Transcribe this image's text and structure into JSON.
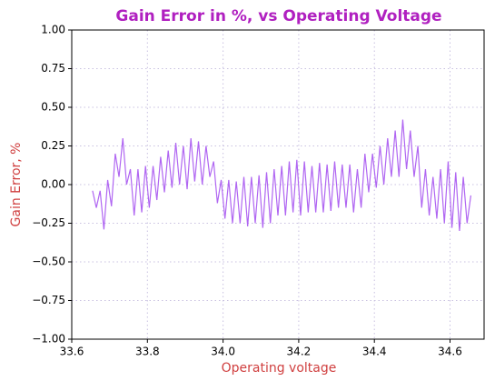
{
  "chart_data": {
    "type": "line",
    "title": "Gain Error in %, vs Operating Voltage",
    "xlabel": "Operating voltage",
    "ylabel": "Gain Error, %",
    "x": [
      33.655,
      33.665,
      33.675,
      33.685,
      33.695,
      33.705,
      33.715,
      33.725,
      33.735,
      33.745,
      33.755,
      33.765,
      33.775,
      33.785,
      33.795,
      33.805,
      33.815,
      33.825,
      33.835,
      33.845,
      33.855,
      33.865,
      33.875,
      33.885,
      33.895,
      33.905,
      33.915,
      33.925,
      33.935,
      33.945,
      33.955,
      33.965,
      33.975,
      33.985,
      33.995,
      34.005,
      34.015,
      34.025,
      34.035,
      34.045,
      34.055,
      34.065,
      34.075,
      34.085,
      34.095,
      34.105,
      34.115,
      34.125,
      34.135,
      34.145,
      34.155,
      34.165,
      34.175,
      34.185,
      34.195,
      34.205,
      34.215,
      34.225,
      34.235,
      34.245,
      34.255,
      34.265,
      34.275,
      34.285,
      34.295,
      34.305,
      34.315,
      34.325,
      34.335,
      34.345,
      34.355,
      34.365,
      34.375,
      34.385,
      34.395,
      34.405,
      34.415,
      34.425,
      34.435,
      34.445,
      34.455,
      34.465,
      34.475,
      34.485,
      34.495,
      34.505,
      34.515,
      34.525,
      34.535,
      34.545,
      34.555,
      34.565,
      34.575,
      34.585,
      34.595,
      34.605,
      34.615,
      34.625,
      34.635,
      34.645,
      34.655
    ],
    "series": [
      {
        "name": "Gain Error",
        "color": "#b066f2",
        "values": [
          -0.04,
          -0.15,
          -0.04,
          -0.29,
          0.03,
          -0.14,
          0.2,
          0.05,
          0.3,
          0.0,
          0.1,
          -0.2,
          0.1,
          -0.18,
          0.12,
          -0.15,
          0.12,
          -0.1,
          0.18,
          -0.05,
          0.22,
          -0.02,
          0.27,
          0.0,
          0.25,
          -0.03,
          0.3,
          0.02,
          0.28,
          0.0,
          0.25,
          0.05,
          0.15,
          -0.12,
          0.03,
          -0.22,
          0.03,
          -0.25,
          0.02,
          -0.25,
          0.05,
          -0.27,
          0.05,
          -0.25,
          0.06,
          -0.28,
          0.08,
          -0.25,
          0.1,
          -0.2,
          0.12,
          -0.2,
          0.15,
          -0.18,
          0.16,
          -0.2,
          0.15,
          -0.18,
          0.12,
          -0.18,
          0.14,
          -0.18,
          0.13,
          -0.17,
          0.15,
          -0.15,
          0.13,
          -0.15,
          0.13,
          -0.18,
          0.1,
          -0.15,
          0.2,
          -0.05,
          0.2,
          -0.02,
          0.25,
          0.0,
          0.3,
          0.05,
          0.35,
          0.05,
          0.42,
          0.1,
          0.35,
          0.05,
          0.25,
          -0.15,
          0.1,
          -0.2,
          0.05,
          -0.22,
          0.1,
          -0.25,
          0.15,
          -0.28,
          0.08,
          -0.3,
          0.05,
          -0.25,
          -0.07
        ]
      }
    ],
    "xlim": [
      33.6,
      34.69
    ],
    "ylim": [
      -1,
      1
    ],
    "xticks": [
      33.6,
      33.8,
      {
        "value": 34.0,
        "label": "34.0"
      },
      34.2,
      34.4,
      34.6
    ],
    "yticks": [
      {
        "value": -1,
        "label": "−1.00"
      },
      {
        "value": -0.75,
        "label": "−0.75"
      },
      {
        "value": -0.5,
        "label": "−0.50"
      },
      {
        "value": -0.25,
        "label": "−0.25"
      },
      {
        "value": 0,
        "label": "0.00"
      },
      {
        "value": 0.25,
        "label": "0.25"
      },
      {
        "value": 0.5,
        "label": "0.50"
      },
      {
        "value": 0.75,
        "label": "0.75"
      },
      {
        "value": 1,
        "label": "1.00"
      }
    ],
    "grid": true
  }
}
